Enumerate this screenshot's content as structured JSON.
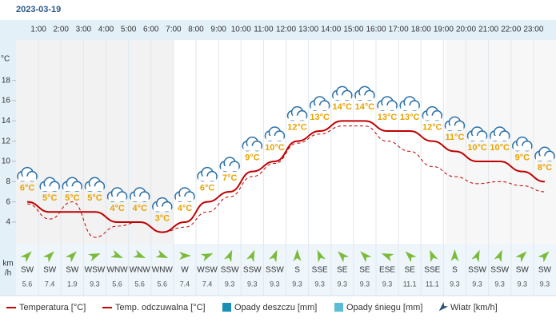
{
  "date": "2023-03-19",
  "chart_data": {
    "type": "line",
    "hour_labels": [
      "1:00",
      "2:00",
      "3:00",
      "4:00",
      "5:00",
      "6:00",
      "7:00",
      "8:00",
      "9:00",
      "10:00",
      "11:00",
      "12:00",
      "13:00",
      "14:00",
      "15:00",
      "16:00",
      "17:00",
      "18:00",
      "19:00",
      "20:00",
      "21:00",
      "22:00",
      "23:00"
    ],
    "y_unit": "°C",
    "ylim": [
      2,
      22
    ],
    "yticks": [
      4,
      6,
      8,
      10,
      12,
      14,
      16,
      18
    ],
    "series": [
      {
        "name": "Temperatura [°C]",
        "color": "#c00000",
        "values": [
          6,
          5,
          5,
          5,
          4,
          4,
          3,
          4,
          6,
          7,
          9,
          10,
          12,
          13,
          14,
          14,
          13,
          13,
          12,
          11,
          10,
          10,
          9,
          8
        ],
        "value_labels": [
          "6°C",
          "5°C",
          "5°C",
          "5°C",
          "4°C",
          "4°C",
          "3°C",
          "4°C",
          "6°C",
          "7°C",
          "9°C",
          "10°C",
          "12°C",
          "13°C",
          "14°C",
          "14°C",
          "13°C",
          "13°C",
          "12°C",
          "11°C",
          "10°C",
          "10°C",
          "9°C",
          "8°C"
        ]
      },
      {
        "name": "Temp. odczuwalna [°C]",
        "color": "#c00000",
        "dashed": true,
        "values": [
          5.8,
          4.3,
          6,
          2.5,
          3.6,
          4,
          3,
          3.5,
          5,
          6.5,
          8.5,
          9.8,
          11.8,
          12.7,
          13.5,
          13.5,
          12,
          11,
          9.5,
          8.5,
          7.8,
          8,
          7.6,
          7
        ]
      }
    ],
    "wind": {
      "unit": [
        "km",
        "/h"
      ],
      "color": "#7cbb3a",
      "directions": [
        "SW",
        "SW",
        "SW",
        "WSW",
        "WNW",
        "WNW",
        "WNW",
        "W",
        "WSW",
        "SSW",
        "SSW",
        "SSW",
        "S",
        "SSE",
        "SE",
        "SE",
        "ESE",
        "SE",
        "SSE",
        "S",
        "SSW",
        "SSW",
        "SW",
        "SW"
      ],
      "speeds": [
        5.6,
        7.4,
        1.9,
        9.3,
        5.6,
        5.6,
        5.6,
        7.4,
        7.4,
        9.3,
        9.3,
        9.3,
        9.3,
        9.3,
        9.3,
        9.3,
        9.3,
        11.1,
        11.1,
        9.3,
        9.3,
        9.3,
        9.3,
        9.3
      ]
    },
    "legend_extra": [
      {
        "name": "Opady deszczu [mm]",
        "color": "#1a8fb5"
      },
      {
        "name": "Opady śniegu [mm]",
        "color": "#5bbcd6"
      },
      {
        "name": "Wiatr [km/h]",
        "color": "#2a4f7a"
      }
    ]
  }
}
